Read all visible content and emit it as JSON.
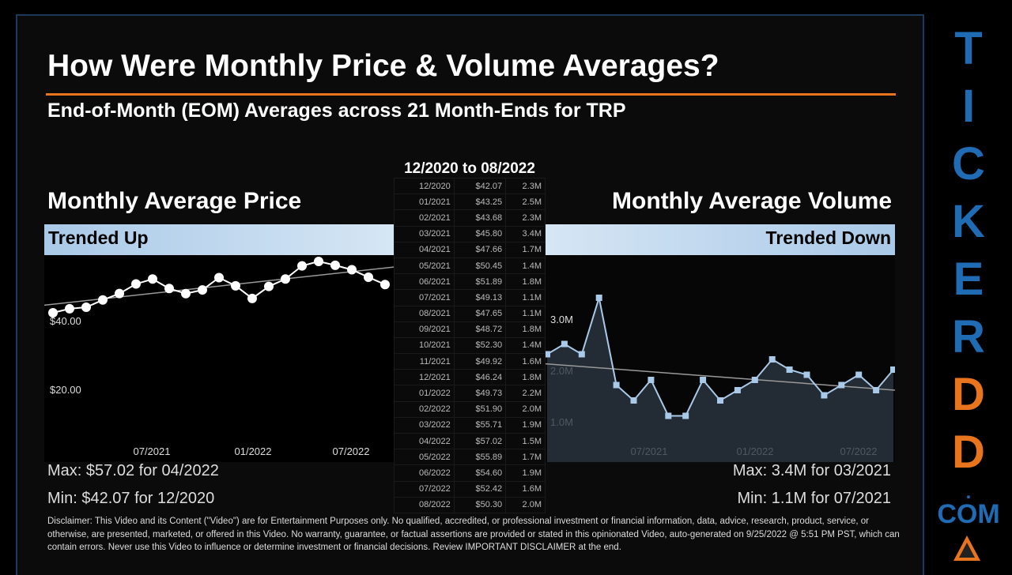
{
  "title": "How Were Monthly Price & Volume Averages?",
  "subtitle": "End-of-Month (EOM) Averages across 21 Month-Ends for TRP",
  "price_panel": {
    "title": "Monthly Average Price",
    "trend": "Trended Up",
    "max": "Max: $57.02 for 04/2022",
    "min": "Min: $42.07 for 12/2020"
  },
  "volume_panel": {
    "title": "Monthly Average Volume",
    "trend": "Trended Down",
    "max": "Max: 3.4M for 03/2021",
    "min": "Min: 1.1M for 07/2021"
  },
  "table": {
    "range": "12/2020 to 08/2022",
    "rows": [
      [
        "12/2020",
        "$42.07",
        "2.3M"
      ],
      [
        "01/2021",
        "$43.25",
        "2.5M"
      ],
      [
        "02/2021",
        "$43.68",
        "2.3M"
      ],
      [
        "03/2021",
        "$45.80",
        "3.4M"
      ],
      [
        "04/2021",
        "$47.66",
        "1.7M"
      ],
      [
        "05/2021",
        "$50.45",
        "1.4M"
      ],
      [
        "06/2021",
        "$51.89",
        "1.8M"
      ],
      [
        "07/2021",
        "$49.13",
        "1.1M"
      ],
      [
        "08/2021",
        "$47.65",
        "1.1M"
      ],
      [
        "09/2021",
        "$48.72",
        "1.8M"
      ],
      [
        "10/2021",
        "$52.30",
        "1.4M"
      ],
      [
        "11/2021",
        "$49.92",
        "1.6M"
      ],
      [
        "12/2021",
        "$46.24",
        "1.8M"
      ],
      [
        "01/2022",
        "$49.73",
        "2.2M"
      ],
      [
        "02/2022",
        "$51.90",
        "2.0M"
      ],
      [
        "03/2022",
        "$55.71",
        "1.9M"
      ],
      [
        "04/2022",
        "$57.02",
        "1.5M"
      ],
      [
        "05/2022",
        "$55.89",
        "1.7M"
      ],
      [
        "06/2022",
        "$54.60",
        "1.9M"
      ],
      [
        "07/2022",
        "$52.42",
        "1.6M"
      ],
      [
        "08/2022",
        "$50.30",
        "2.0M"
      ]
    ]
  },
  "chart_data": [
    {
      "type": "line",
      "name": "price",
      "x": [
        "12/2020",
        "01/2021",
        "02/2021",
        "03/2021",
        "04/2021",
        "05/2021",
        "06/2021",
        "07/2021",
        "08/2021",
        "09/2021",
        "10/2021",
        "11/2021",
        "12/2021",
        "01/2022",
        "02/2022",
        "03/2022",
        "04/2022",
        "05/2022",
        "06/2022",
        "07/2022",
        "08/2022"
      ],
      "values": [
        42.07,
        43.25,
        43.68,
        45.8,
        47.66,
        50.45,
        51.89,
        49.13,
        47.65,
        48.72,
        52.3,
        49.92,
        46.24,
        49.73,
        51.9,
        55.71,
        57.02,
        55.89,
        54.6,
        52.42,
        50.3
      ],
      "yticks": [
        "$40.00",
        "$20.00"
      ],
      "ytick_values": [
        40,
        20
      ],
      "xticks": [
        "07/2021",
        "01/2022",
        "07/2022"
      ],
      "trendline": true,
      "color": "#ffffff",
      "marker": "circle"
    },
    {
      "type": "area",
      "name": "volume",
      "x": [
        "12/2020",
        "01/2021",
        "02/2021",
        "03/2021",
        "04/2021",
        "05/2021",
        "06/2021",
        "07/2021",
        "08/2021",
        "09/2021",
        "10/2021",
        "11/2021",
        "12/2021",
        "01/2022",
        "02/2022",
        "03/2022",
        "04/2022",
        "05/2022",
        "06/2022",
        "07/2022",
        "08/2022"
      ],
      "values": [
        2.3,
        2.5,
        2.3,
        3.4,
        1.7,
        1.4,
        1.8,
        1.1,
        1.1,
        1.8,
        1.4,
        1.6,
        1.8,
        2.2,
        2.0,
        1.9,
        1.5,
        1.7,
        1.9,
        1.6,
        2.0
      ],
      "yticks": [
        "3.0M",
        "2.0M",
        "1.0M"
      ],
      "ytick_values": [
        3,
        2,
        1
      ],
      "xticks": [
        "07/2021",
        "01/2022",
        "07/2022"
      ],
      "trendline": true,
      "color": "#a9c9e8",
      "marker": "square"
    }
  ],
  "disclaimer": "Disclaimer: This Video and its Content (\"Video\") are for Entertainment Purposes only. No qualified, accredited, or professional investment or financial information, data, advice, research, product, service, or otherwise, are presented, marketed, or offered in this Video. No warranty, guarantee, or factual assertions are provided or stated in this opinionated Video, auto-generated on 9/25/2022 @ 5:51 PM PST, which can contain errors. Never use this Video to influence or determine investment or financial decisions. Review IMPORTANT DISCLAIMER at the end.",
  "brand": {
    "letters": [
      "T",
      "I",
      "C",
      "K",
      "E",
      "R",
      "D",
      "D",
      "."
    ],
    "colors": [
      "#1f6cb5",
      "#1f6cb5",
      "#1f6cb5",
      "#1f6cb5",
      "#1f6cb5",
      "#1f6cb5",
      "#e8741e",
      "#e8741e",
      "#1f6cb5"
    ],
    "suffix": "COM"
  }
}
